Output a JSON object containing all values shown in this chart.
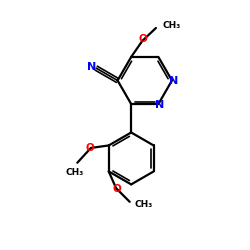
{
  "bg_color": "#ffffff",
  "bond_color": "#000000",
  "n_color": "#0000ff",
  "o_color": "#ff0000",
  "figsize": [
    2.5,
    2.5
  ],
  "dpi": 100,
  "xlim": [
    0,
    10
  ],
  "ylim": [
    0,
    10
  ]
}
